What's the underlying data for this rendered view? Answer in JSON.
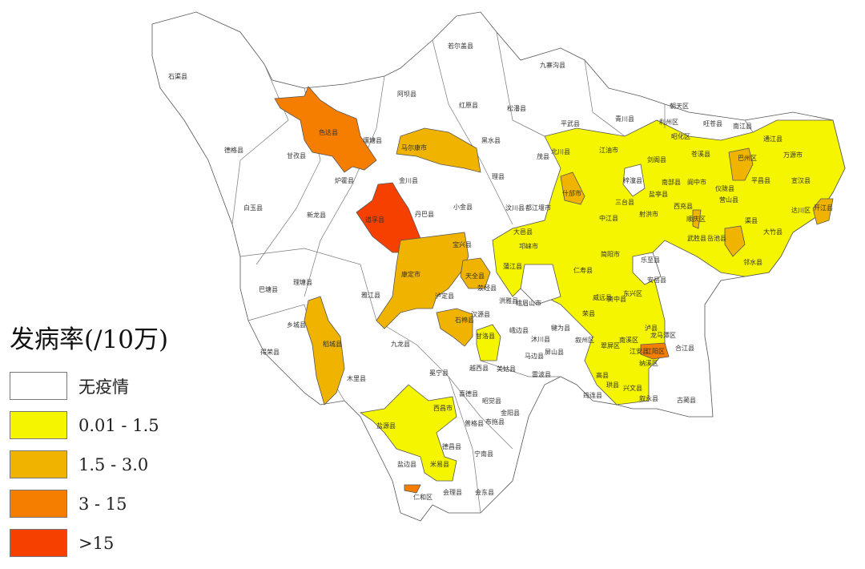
{
  "legend": {
    "title": "发病率(/10万)",
    "items": [
      {
        "label": "无疫情",
        "color": "#ffffff"
      },
      {
        "label": "0.01 - 1.5",
        "color": "#f5f500"
      },
      {
        "label": "1.5 - 3.0",
        "color": "#f0b400"
      },
      {
        "label": "3 - 15",
        "color": "#f57d00"
      },
      {
        "label": ">15",
        "color": "#f54000"
      }
    ]
  },
  "map": {
    "regions": [
      {
        "name": "色达县",
        "class": "3 - 15"
      },
      {
        "name": "马尔康市",
        "class": "1.5 - 3.0"
      },
      {
        "name": "道孚县",
        "class": ">15"
      },
      {
        "name": "康定市",
        "class": "1.5 - 3.0"
      },
      {
        "name": "天全县",
        "class": "1.5 - 3.0"
      },
      {
        "name": "石棉县",
        "class": "1.5 - 3.0"
      },
      {
        "name": "稻城县",
        "class": "1.5 - 3.0"
      },
      {
        "name": "甘洛县",
        "class": "0.01 - 1.5"
      },
      {
        "name": "盐源县",
        "class": "0.01 - 1.5"
      },
      {
        "name": "巴州区",
        "class": "1.5 - 3.0"
      },
      {
        "name": "开江县",
        "class": "1.5 - 3.0"
      },
      {
        "name": "什邡市",
        "class": "1.5 - 3.0"
      },
      {
        "name": "江阳区",
        "class": "3 - 15"
      },
      {
        "name": "渠县",
        "class": "1.5 - 3.0"
      },
      {
        "name": "仁和区",
        "class": "3 - 15"
      },
      {
        "name": "顺庆区",
        "class": "1.5 - 3.0"
      }
    ],
    "labels": [
      "石渠县",
      "若尔盖县",
      "九寨沟县",
      "阿坝县",
      "红原县",
      "松潘县",
      "色达县",
      "壤塘县",
      "德格县",
      "甘孜县",
      "马尔康市",
      "黑水县",
      "平武县",
      "青川县",
      "朝天区",
      "利州区",
      "旺苍县",
      "南江县",
      "昭化区",
      "通江县",
      "北川县",
      "江油市",
      "剑阁县",
      "苍溪县",
      "巴州区",
      "万源市",
      "茂县",
      "理县",
      "炉霍县",
      "金川县",
      "白玉县",
      "新龙县",
      "道孚县",
      "丹巴县",
      "小金县",
      "汶川县",
      "都江堰市",
      "梓潼县",
      "南部县",
      "阆中市",
      "平昌县",
      "宣汉县",
      "三台县",
      "盐亭县",
      "西充县",
      "仪陇县",
      "营山县",
      "达川区",
      "开江县",
      "渠县",
      "大竹县",
      "邻水县",
      "宝兴县",
      "康定市",
      "天全县",
      "理塘县",
      "巴塘县",
      "雅江县",
      "泸定县",
      "荥经县",
      "乡城县",
      "稻城县",
      "九龙县",
      "石棉县",
      "得荣县",
      "木里县",
      "冕宁县",
      "甘洛县",
      "越西县",
      "美姑县",
      "雷波县",
      "马边县",
      "喜德县",
      "昭觉县",
      "西昌市",
      "盐源县",
      "普格县",
      "布拖县",
      "金阳县",
      "德昌县",
      "宁南县",
      "盐边县",
      "米易县",
      "会理县",
      "会东县",
      "仁和区",
      "大邑县",
      "邛崃市",
      "蒲江县",
      "仁寿县",
      "简阳市",
      "乐至县",
      "安岳县",
      "资中县",
      "东兴区",
      "威远县",
      "荣县",
      "叙州区",
      "翠屏区",
      "南溪区",
      "江安县",
      "泸县",
      "龙马潭区",
      "纳溪区",
      "合江县",
      "高县",
      "珙县",
      "兴文县",
      "筠连县",
      "叙永县",
      "古蔺县",
      "峨边县",
      "沐川县",
      "屏山县",
      "犍为县",
      "汉源县",
      "洪雅县",
      "峨眉山市",
      "中江县",
      "射洪市",
      "武胜县",
      "岳池县"
    ]
  }
}
